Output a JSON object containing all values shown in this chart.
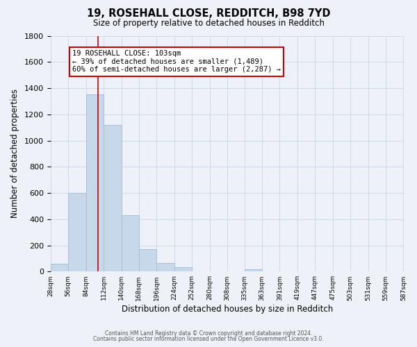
{
  "title": "19, ROSEHALL CLOSE, REDDITCH, B98 7YD",
  "subtitle": "Size of property relative to detached houses in Redditch",
  "xlabel": "Distribution of detached houses by size in Redditch",
  "ylabel": "Number of detached properties",
  "bar_color": "#c8d8eb",
  "bar_edge_color": "#a8c0d8",
  "bins": [
    28,
    56,
    84,
    112,
    140,
    168,
    196,
    224,
    252,
    280,
    308,
    335,
    363,
    391,
    419,
    447,
    475,
    503,
    531,
    559,
    587
  ],
  "bin_labels": [
    "28sqm",
    "56sqm",
    "84sqm",
    "112sqm",
    "140sqm",
    "168sqm",
    "196sqm",
    "224sqm",
    "252sqm",
    "280sqm",
    "308sqm",
    "335sqm",
    "363sqm",
    "391sqm",
    "419sqm",
    "447sqm",
    "475sqm",
    "503sqm",
    "531sqm",
    "559sqm",
    "587sqm"
  ],
  "values": [
    60,
    600,
    1350,
    1120,
    430,
    170,
    65,
    35,
    0,
    0,
    0,
    20,
    0,
    0,
    0,
    0,
    0,
    0,
    0,
    0
  ],
  "vline_x": 103,
  "vline_color": "#cc0000",
  "annotation_line1": "19 ROSEHALL CLOSE: 103sqm",
  "annotation_line2": "← 39% of detached houses are smaller (1,489)",
  "annotation_line3": "60% of semi-detached houses are larger (2,287) →",
  "annotation_box_color": "#ffffff",
  "annotation_box_edge": "#cc0000",
  "ylim": [
    0,
    1800
  ],
  "yticks": [
    0,
    200,
    400,
    600,
    800,
    1000,
    1200,
    1400,
    1600,
    1800
  ],
  "footer_line1": "Contains HM Land Registry data © Crown copyright and database right 2024.",
  "footer_line2": "Contains public sector information licensed under the Open Government Licence v3.0.",
  "grid_color": "#d0dae8",
  "background_color": "#eef2f8"
}
